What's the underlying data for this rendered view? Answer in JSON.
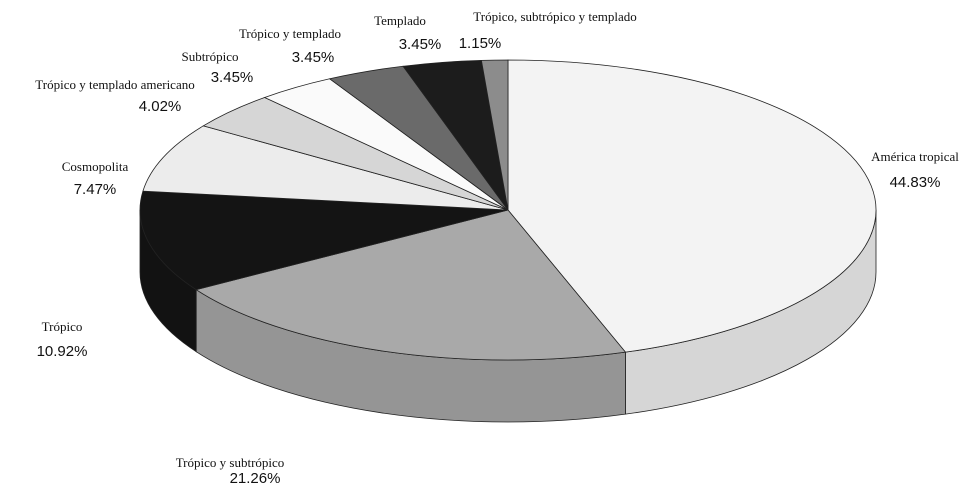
{
  "chart_data": {
    "type": "pie3d",
    "categories": [
      "América tropical",
      "Trópico y subtrópico",
      "Trópico",
      "Cosmopolita",
      "Trópico y templado americano",
      "Subtrópico",
      "Trópico y templado",
      "Templado",
      "Trópico, subtrópico y templado"
    ],
    "values": [
      44.83,
      21.26,
      10.92,
      7.47,
      4.02,
      3.45,
      3.45,
      3.45,
      1.15
    ],
    "value_labels": [
      "44.83%",
      "21.26%",
      "10.92%",
      "7.47%",
      "4.02%",
      "3.45%",
      "3.45%",
      "3.45%",
      "1.15%"
    ],
    "colors": [
      "#f3f3f3",
      "#a9a9a9",
      "#141414",
      "#ececec",
      "#d6d6d6",
      "#fafafa",
      "#6a6a6a",
      "#1c1c1c",
      "#8c8c8c"
    ]
  }
}
